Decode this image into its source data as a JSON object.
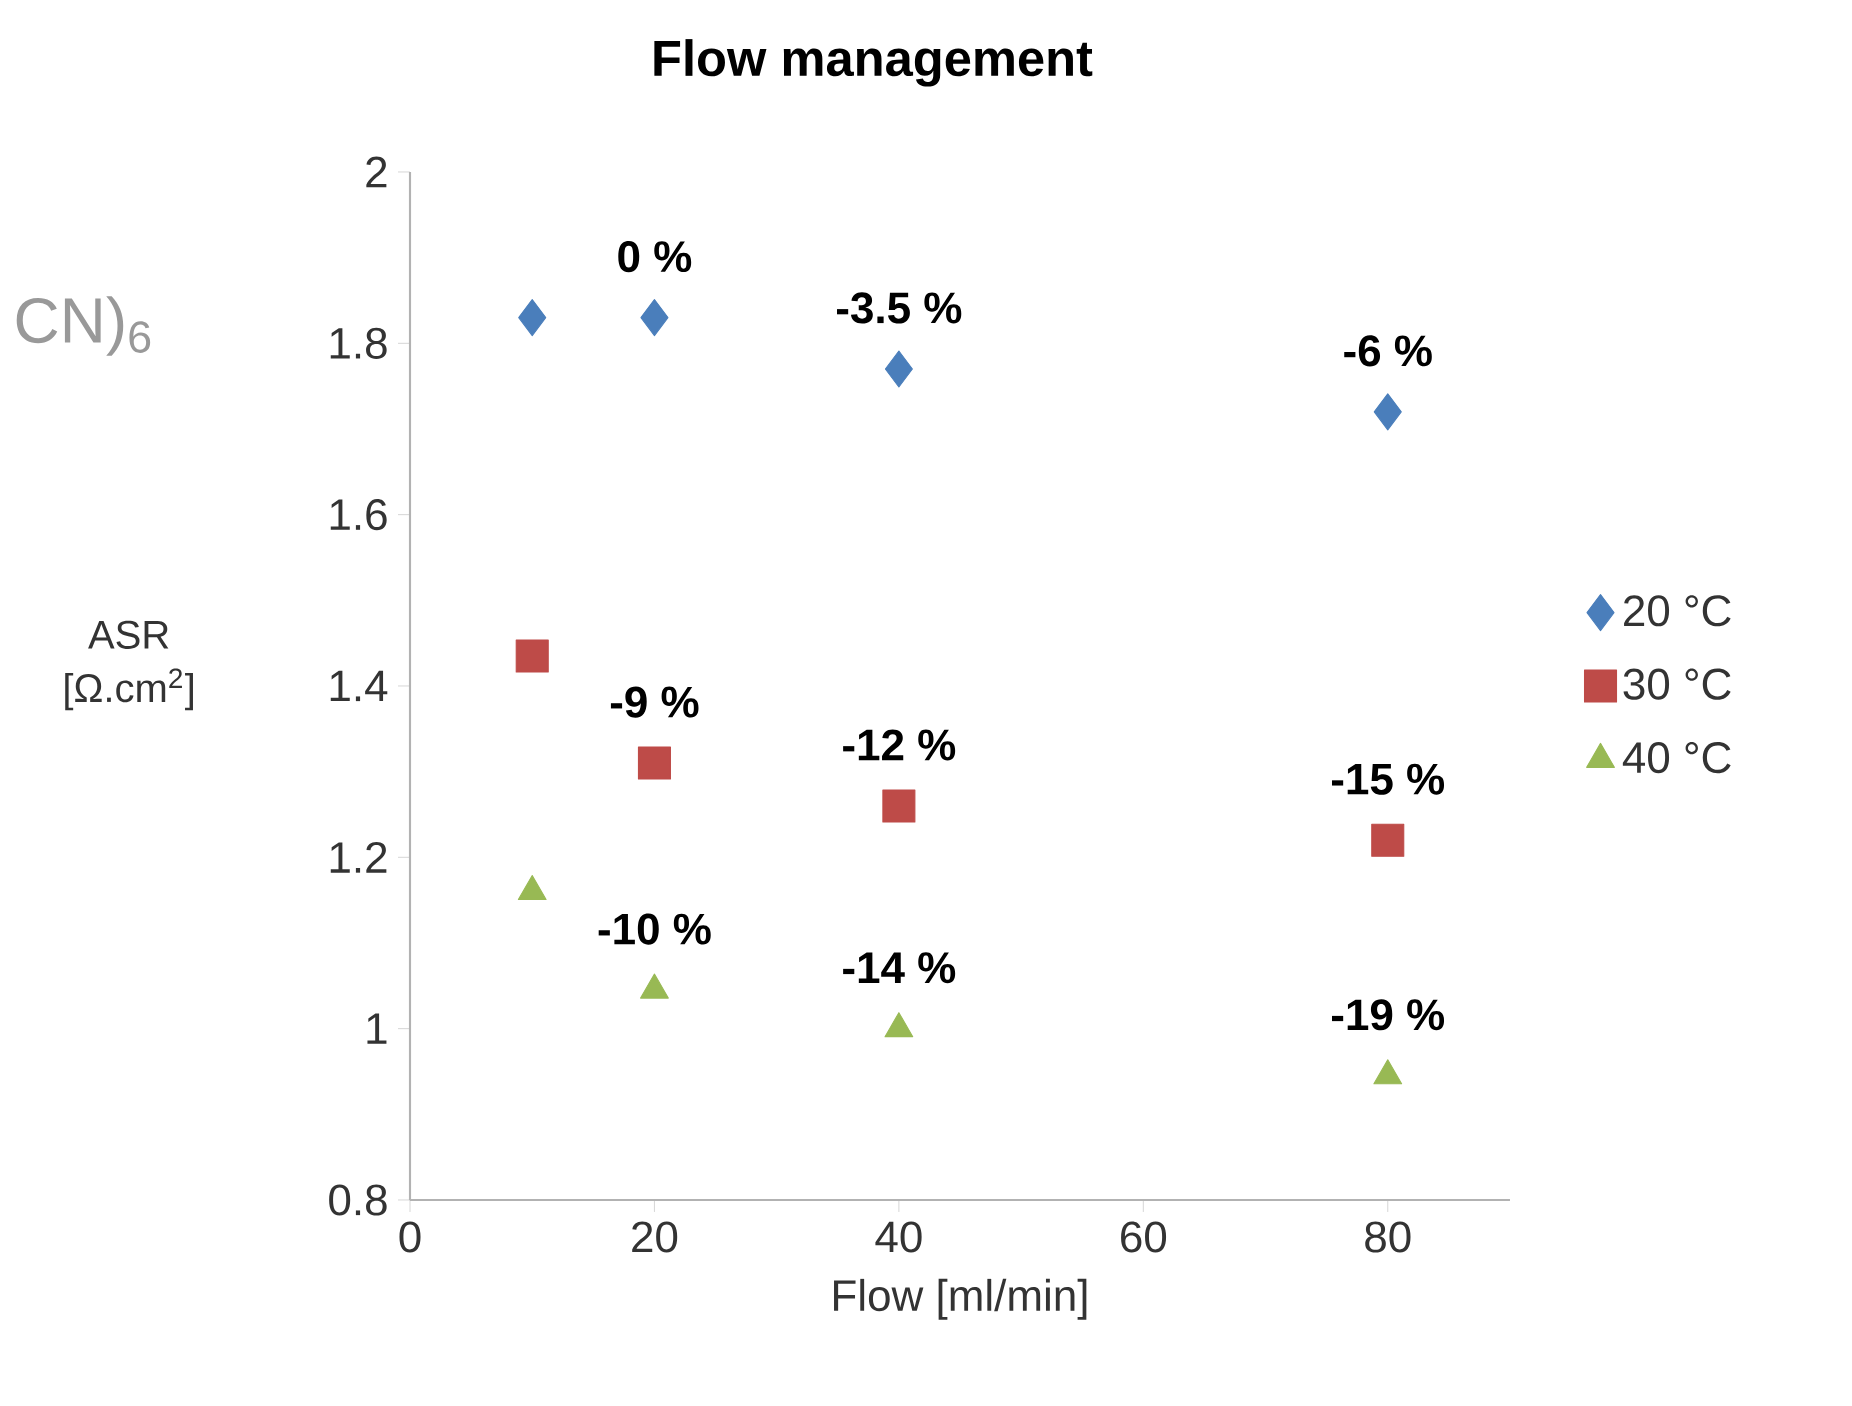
{
  "chart_data": {
    "type": "scatter",
    "title": "Flow management",
    "xlabel": "Flow [ml/min]",
    "ylabel": "ASR [Ω.cm$^{2}$]",
    "x": [
      10,
      20,
      40,
      80
    ],
    "series": [
      {
        "name": "20 °C",
        "color": "#4a7ebb",
        "marker": "diamond",
        "values": [
          1.83,
          1.83,
          1.77,
          1.72
        ]
      },
      {
        "name": "30 °C",
        "color": "#be4b48",
        "marker": "square",
        "values": [
          1.435,
          1.31,
          1.26,
          1.22
        ]
      },
      {
        "name": "40 °C",
        "color": "#98b954",
        "marker": "triangle",
        "values": [
          1.16,
          1.045,
          1.0,
          0.945
        ]
      }
    ],
    "xlim": [
      0,
      90
    ],
    "ylim": [
      0.8,
      2
    ],
    "xticks": [
      0,
      20,
      40,
      60,
      80
    ],
    "yticks": [
      0.8,
      1,
      1.2,
      1.4,
      1.6,
      1.8,
      2
    ],
    "legend": "right",
    "annotations": [
      {
        "text": "0 %",
        "x": 20,
        "y": 1.83
      },
      {
        "text": "-3.5 %",
        "x": 40,
        "y": 1.77
      },
      {
        "text": "-6 %",
        "x": 80,
        "y": 1.72
      },
      {
        "text": "-9 %",
        "x": 20,
        "y": 1.31
      },
      {
        "text": "-12 %",
        "x": 40,
        "y": 1.26
      },
      {
        "text": "-15 %",
        "x": 80,
        "y": 1.22
      },
      {
        "text": "-10 %",
        "x": 20,
        "y": 1.045
      },
      {
        "text": "-14 %",
        "x": 40,
        "y": 1.0
      },
      {
        "text": "-19 %",
        "x": 80,
        "y": 0.945
      },
      "CN)$_{6}$"
    ]
  }
}
